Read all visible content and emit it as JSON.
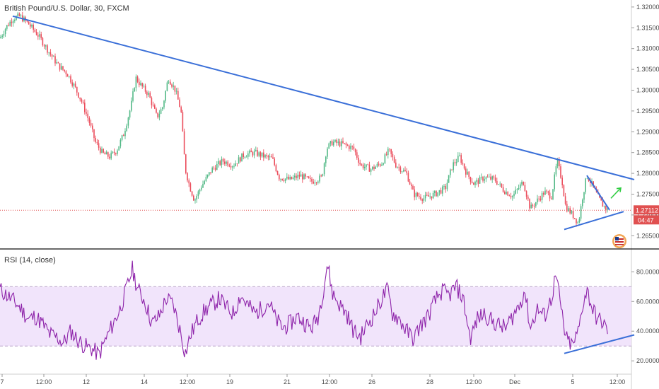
{
  "chart_data": [
    {
      "type": "candlestick",
      "title": "British Pound/U.S. Dollar, 30, FXCM",
      "ylim": [
        1.2625,
        1.321
      ],
      "y_ticks": [
        "1.26500",
        "1.27000",
        "1.27500",
        "1.28000",
        "1.28500",
        "1.29000",
        "1.29500",
        "1.30000",
        "1.30500",
        "1.31000",
        "1.31500",
        "1.32000"
      ],
      "x_ticks": [
        "7",
        "12:00",
        "12",
        "14",
        "12:00",
        "19",
        "21",
        "12:00",
        "26",
        "28",
        "12:00",
        "Dec",
        "5",
        "12:00"
      ],
      "last_price": "1.27112",
      "countdown": "04:47",
      "colors": {
        "up": "#53b987",
        "down": "#eb4d5c",
        "trendline": "#3a6fd8",
        "arrow": "#2ecc40",
        "price_line": "#e05050"
      },
      "price_path": [
        [
          0,
          1.3125
        ],
        [
          8,
          1.315
        ],
        [
          18,
          1.3172
        ],
        [
          28,
          1.3178
        ],
        [
          40,
          1.316
        ],
        [
          55,
          1.313
        ],
        [
          70,
          1.309
        ],
        [
          82,
          1.306
        ],
        [
          95,
          1.304
        ],
        [
          105,
          1.301
        ],
        [
          115,
          1.2975
        ],
        [
          125,
          1.293
        ],
        [
          135,
          1.2875
        ],
        [
          145,
          1.2848
        ],
        [
          155,
          1.284
        ],
        [
          165,
          1.2855
        ],
        [
          175,
          1.2895
        ],
        [
          185,
          1.296
        ],
        [
          192,
          1.303
        ],
        [
          200,
          1.301
        ],
        [
          210,
          1.299
        ],
        [
          222,
          1.2935
        ],
        [
          230,
          1.296
        ],
        [
          238,
          1.303
        ],
        [
          248,
          1.3
        ],
        [
          256,
          1.295
        ],
        [
          262,
          1.281
        ],
        [
          268,
          1.277
        ],
        [
          275,
          1.2735
        ],
        [
          285,
          1.277
        ],
        [
          300,
          1.281
        ],
        [
          315,
          1.283
        ],
        [
          330,
          1.282
        ],
        [
          345,
          1.2845
        ],
        [
          360,
          1.285
        ],
        [
          375,
          1.284
        ],
        [
          385,
          1.2835
        ],
        [
          395,
          1.279
        ],
        [
          410,
          1.2785
        ],
        [
          425,
          1.2795
        ],
        [
          440,
          1.278
        ],
        [
          455,
          1.279
        ],
        [
          462,
          1.286
        ],
        [
          470,
          1.2875
        ],
        [
          485,
          1.287
        ],
        [
          500,
          1.286
        ],
        [
          510,
          1.282
        ],
        [
          525,
          1.281
        ],
        [
          540,
          1.2825
        ],
        [
          550,
          1.2855
        ],
        [
          560,
          1.282
        ],
        [
          575,
          1.28
        ],
        [
          585,
          1.275
        ],
        [
          600,
          1.274
        ],
        [
          615,
          1.275
        ],
        [
          630,
          1.2765
        ],
        [
          640,
          1.282
        ],
        [
          650,
          1.284
        ],
        [
          660,
          1.28
        ],
        [
          670,
          1.2775
        ],
        [
          685,
          1.279
        ],
        [
          700,
          1.2785
        ],
        [
          712,
          1.276
        ],
        [
          725,
          1.2745
        ],
        [
          740,
          1.278
        ],
        [
          750,
          1.2715
        ],
        [
          760,
          1.2735
        ],
        [
          770,
          1.2755
        ],
        [
          780,
          1.2745
        ],
        [
          788,
          1.283
        ],
        [
          795,
          1.278
        ],
        [
          800,
          1.272
        ],
        [
          810,
          1.27
        ],
        [
          818,
          1.268
        ],
        [
          824,
          1.2745
        ],
        [
          830,
          1.2795
        ],
        [
          838,
          1.277
        ],
        [
          845,
          1.2745
        ],
        [
          852,
          1.2725
        ],
        [
          860,
          1.271
        ]
      ],
      "trendlines": [
        {
          "from": [
            18,
            1.3178
          ],
          "to": [
            897,
            1.2785
          ]
        },
        {
          "from": [
            798,
            1.2665
          ],
          "to": [
            882,
            1.2708
          ]
        },
        {
          "from": [
            830,
            1.2795
          ],
          "to": [
            862,
            1.2712
          ]
        }
      ],
      "arrow": {
        "from": [
          864,
          1.274
        ],
        "to": [
          878,
          1.2765
        ]
      },
      "grid": false,
      "legend": "none"
    },
    {
      "type": "line",
      "title": "RSI (14, close)",
      "ylim": [
        12,
        93
      ],
      "y_ticks": [
        "20.0000",
        "40.0000",
        "60.0000",
        "80.0000"
      ],
      "band": [
        30,
        70
      ],
      "band_color": "#f1e4fb",
      "line_color": "#8e24aa",
      "trend_color": "#3a6fd8",
      "rsi_path": [
        [
          0,
          68
        ],
        [
          10,
          64
        ],
        [
          20,
          60
        ],
        [
          30,
          55
        ],
        [
          40,
          48
        ],
        [
          50,
          50
        ],
        [
          60,
          45
        ],
        [
          70,
          38
        ],
        [
          80,
          36
        ],
        [
          90,
          32
        ],
        [
          100,
          40
        ],
        [
          110,
          34
        ],
        [
          120,
          30
        ],
        [
          130,
          28
        ],
        [
          140,
          24
        ],
        [
          150,
          35
        ],
        [
          160,
          45
        ],
        [
          170,
          55
        ],
        [
          180,
          70
        ],
        [
          187,
          82
        ],
        [
          195,
          68
        ],
        [
          205,
          60
        ],
        [
          215,
          45
        ],
        [
          225,
          50
        ],
        [
          235,
          62
        ],
        [
          245,
          58
        ],
        [
          255,
          40
        ],
        [
          262,
          25
        ],
        [
          270,
          38
        ],
        [
          280,
          48
        ],
        [
          290,
          54
        ],
        [
          300,
          58
        ],
        [
          310,
          62
        ],
        [
          320,
          56
        ],
        [
          330,
          52
        ],
        [
          340,
          64
        ],
        [
          350,
          58
        ],
        [
          360,
          52
        ],
        [
          370,
          55
        ],
        [
          380,
          60
        ],
        [
          390,
          48
        ],
        [
          400,
          42
        ],
        [
          410,
          45
        ],
        [
          420,
          50
        ],
        [
          430,
          46
        ],
        [
          440,
          42
        ],
        [
          450,
          50
        ],
        [
          458,
          70
        ],
        [
          463,
          86
        ],
        [
          470,
          66
        ],
        [
          480,
          58
        ],
        [
          490,
          52
        ],
        [
          500,
          40
        ],
        [
          510,
          36
        ],
        [
          520,
          45
        ],
        [
          530,
          52
        ],
        [
          540,
          62
        ],
        [
          548,
          68
        ],
        [
          555,
          52
        ],
        [
          565,
          48
        ],
        [
          575,
          40
        ],
        [
          585,
          35
        ],
        [
          595,
          44
        ],
        [
          605,
          50
        ],
        [
          615,
          60
        ],
        [
          625,
          67
        ],
        [
          635,
          64
        ],
        [
          645,
          70
        ],
        [
          655,
          62
        ],
        [
          665,
          35
        ],
        [
          675,
          48
        ],
        [
          685,
          52
        ],
        [
          695,
          47
        ],
        [
          705,
          44
        ],
        [
          715,
          42
        ],
        [
          725,
          50
        ],
        [
          735,
          58
        ],
        [
          742,
          68
        ],
        [
          750,
          42
        ],
        [
          760,
          55
        ],
        [
          770,
          50
        ],
        [
          780,
          62
        ],
        [
          786,
          78
        ],
        [
          792,
          60
        ],
        [
          800,
          35
        ],
        [
          810,
          30
        ],
        [
          818,
          40
        ],
        [
          824,
          58
        ],
        [
          830,
          68
        ],
        [
          838,
          55
        ],
        [
          845,
          48
        ],
        [
          852,
          46
        ],
        [
          860,
          40
        ]
      ],
      "trendline": {
        "from": [
          798,
          25
        ],
        "to": [
          897,
          37.5
        ]
      }
    }
  ]
}
